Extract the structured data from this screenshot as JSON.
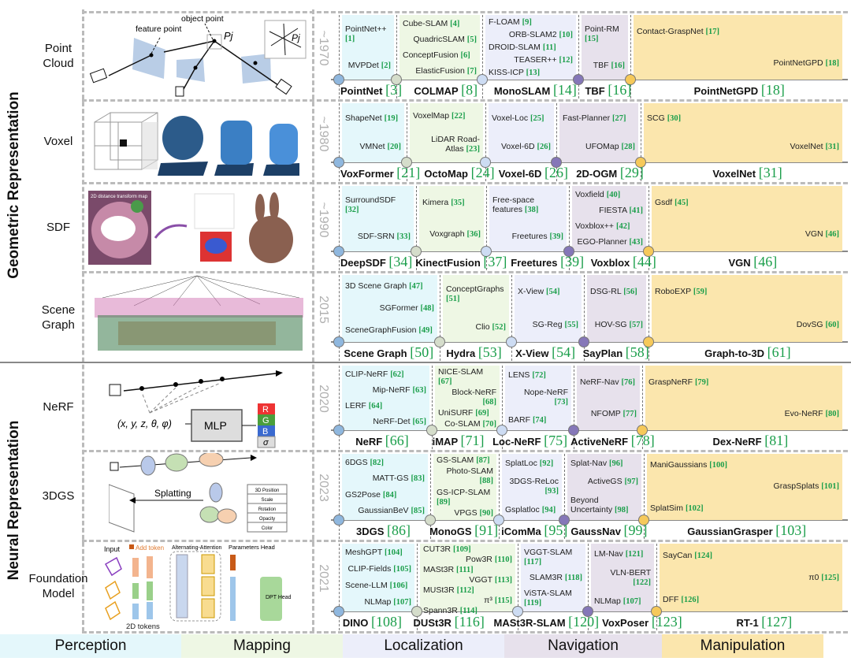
{
  "groups": [
    {
      "label": "Geometric Representation"
    },
    {
      "label": "Neural Representation"
    }
  ],
  "colors": {
    "perception": "#e4f7fb",
    "mapping": "#eef7e4",
    "localization": "#eceefa",
    "navigation": "#e7e1ec",
    "manipulation": "#fbe6ad",
    "ref_green": "#1a9e4a",
    "dots": [
      "#8fb7de",
      "#d5ddcb",
      "#cddcf3",
      "#8577b8",
      "#f6c95a"
    ]
  },
  "legend": [
    "Perception",
    "Mapping",
    "Localization",
    "Navigation",
    "Manipulation"
  ],
  "illustrations": {
    "point_cloud": {
      "feature_point": "feature point",
      "object_point": "object point",
      "pj": "Pj"
    },
    "sdf": {
      "title": "2D distance transform map"
    },
    "nerf": {
      "input": "(x, y, z, θ, φ)",
      "mlp": "MLP",
      "r": "R",
      "g": "G",
      "b": "B",
      "sigma": "σ"
    },
    "gs": {
      "splatting": "Splatting",
      "attrs": [
        "3D Position",
        "Scale",
        "Rotation",
        "Opacity",
        "Color"
      ]
    },
    "foundation": {
      "input": "Input",
      "add_token": "Add token",
      "attention": "Alternating-Attention",
      "params_head": "Parameters Head",
      "dpt_head": "DPT Head",
      "tokens": "2D tokens"
    }
  },
  "rows": [
    {
      "category": "Point Cloud",
      "year": "~1970",
      "columns": [
        {
          "items": [
            {
              "n": "PointNet++",
              "r": "[1]"
            },
            {
              "n": "MVPDet",
              "r": "[2]"
            }
          ],
          "main": {
            "n": "PointNet",
            "r": "[3]"
          }
        },
        {
          "items": [
            {
              "n": "Cube-SLAM",
              "r": "[4]"
            },
            {
              "n": "QuadricSLAM",
              "r": "[5]"
            },
            {
              "n": "ConceptFusion",
              "r": "[6]"
            },
            {
              "n": "ElasticFusion",
              "r": "[7]"
            }
          ],
          "main": {
            "n": "COLMAP",
            "r": "[8]"
          }
        },
        {
          "items": [
            {
              "n": "F-LOAM",
              "r": "[9]"
            },
            {
              "n": "ORB-SLAM2",
              "r": "[10]"
            },
            {
              "n": "DROID-SLAM",
              "r": "[11]"
            },
            {
              "n": "TEASER++",
              "r": "[12]"
            },
            {
              "n": "KISS-ICP",
              "r": "[13]"
            }
          ],
          "main": {
            "n": "MonoSLAM",
            "r": "[14]"
          }
        },
        {
          "items": [
            {
              "n": "Point-RM",
              "r": "[15]"
            },
            {
              "n": "TBF",
              "r": "[16]"
            }
          ],
          "main": {
            "n": "TBF",
            "r": "[16]"
          }
        },
        {
          "items": [
            {
              "n": "Contact-GraspNet",
              "r": "[17]"
            },
            {
              "n": "PointNetGPD",
              "r": "[18]"
            }
          ],
          "main": {
            "n": "PointNetGPD",
            "r": "[18]"
          }
        }
      ]
    },
    {
      "category": "Voxel",
      "year": "~1980",
      "columns": [
        {
          "items": [
            {
              "n": "ShapeNet",
              "r": "[19]"
            },
            {
              "n": "VMNet",
              "r": "[20]"
            }
          ],
          "main": {
            "n": "VoxFormer",
            "r": "[21]"
          }
        },
        {
          "items": [
            {
              "n": "VoxelMap",
              "r": "[22]"
            },
            {
              "n": "LiDAR Road-Atlas",
              "r": "[23]"
            }
          ],
          "main": {
            "n": "OctoMap",
            "r": "[24]"
          }
        },
        {
          "items": [
            {
              "n": "Voxel-Loc",
              "r": "[25]"
            },
            {
              "n": "Voxel-6D",
              "r": "[26]"
            }
          ],
          "main": {
            "n": "Voxel-6D",
            "r": "[26]"
          }
        },
        {
          "items": [
            {
              "n": "Fast-Planner",
              "r": "[27]"
            },
            {
              "n": "UFOMap",
              "r": "[28]"
            }
          ],
          "main": {
            "n": "2D-OGM",
            "r": "[29]"
          }
        },
        {
          "items": [
            {
              "n": "SCG",
              "r": "[30]"
            },
            {
              "n": "VoxelNet",
              "r": "[31]"
            }
          ],
          "main": {
            "n": "VoxelNet",
            "r": "[31]"
          }
        }
      ]
    },
    {
      "category": "SDF",
      "year": "~1990",
      "columns": [
        {
          "items": [
            {
              "n": "SurroundSDF",
              "r": "[32]"
            },
            {
              "n": "SDF-SRN",
              "r": "[33]"
            }
          ],
          "main": {
            "n": "DeepSDF",
            "r": "[34]"
          }
        },
        {
          "items": [
            {
              "n": "Kimera",
              "r": "[35]"
            },
            {
              "n": "Voxgraph",
              "r": "[36]"
            }
          ],
          "main": {
            "n": "KinectFusion",
            "r": "[37]"
          }
        },
        {
          "items": [
            {
              "n": "Free-space features",
              "r": "[38]"
            },
            {
              "n": "Freetures",
              "r": "[39]"
            }
          ],
          "main": {
            "n": "Freetures",
            "r": "[39]"
          }
        },
        {
          "items": [
            {
              "n": "Voxfield",
              "r": "[40]"
            },
            {
              "n": "FIESTA",
              "r": "[41]"
            },
            {
              "n": "Voxblox++",
              "r": "[42]"
            },
            {
              "n": "EGO-Planner",
              "r": "[43]"
            }
          ],
          "main": {
            "n": "Voxblox",
            "r": "[44]"
          }
        },
        {
          "items": [
            {
              "n": "Gsdf",
              "r": "[45]"
            },
            {
              "n": "VGN",
              "r": "[46]"
            }
          ],
          "main": {
            "n": "VGN",
            "r": "[46]"
          }
        }
      ]
    },
    {
      "category": "Scene Graph",
      "year": "2015",
      "columns": [
        {
          "items": [
            {
              "n": "3D Scene Graph",
              "r": "[47]"
            },
            {
              "n": "SGFormer",
              "r": "[48]"
            },
            {
              "n": "SceneGraphFusion",
              "r": "[49]"
            }
          ],
          "main": {
            "n": "Scene Graph",
            "r": "[50]"
          }
        },
        {
          "items": [
            {
              "n": "ConceptGraphs",
              "r": "[51]"
            },
            {
              "n": "Clio",
              "r": "[52]"
            }
          ],
          "main": {
            "n": "Hydra",
            "r": "[53]"
          }
        },
        {
          "items": [
            {
              "n": "X-View",
              "r": "[54]"
            },
            {
              "n": "SG-Reg",
              "r": "[55]"
            }
          ],
          "main": {
            "n": "X-View",
            "r": "[54]"
          }
        },
        {
          "items": [
            {
              "n": "DSG-RL",
              "r": "[56]"
            },
            {
              "n": "HOV-SG",
              "r": "[57]"
            }
          ],
          "main": {
            "n": "SayPlan",
            "r": "[58]"
          }
        },
        {
          "items": [
            {
              "n": "RoboEXP",
              "r": "[59]"
            },
            {
              "n": "DovSG",
              "r": "[60]"
            }
          ],
          "main": {
            "n": "Graph-to-3D",
            "r": "[61]"
          }
        }
      ]
    },
    {
      "category": "NeRF",
      "year": "2020",
      "columns": [
        {
          "items": [
            {
              "n": "CLIP-NeRF",
              "r": "[62]"
            },
            {
              "n": "Mip-NeRF",
              "r": "[63]"
            },
            {
              "n": "LERF",
              "r": "[64]"
            },
            {
              "n": "NeRF-Det",
              "r": "[65]"
            }
          ],
          "main": {
            "n": "NeRF",
            "r": "[66]"
          }
        },
        {
          "items": [
            {
              "n": "NICE-SLAM",
              "r": "[67]"
            },
            {
              "n": "Block-NeRF",
              "r": "[68]"
            },
            {
              "n": "UniSURF",
              "r": "[69]"
            },
            {
              "n": "Co-SLAM",
              "r": "[70]"
            }
          ],
          "main": {
            "n": "iMAP",
            "r": "[71]"
          }
        },
        {
          "items": [
            {
              "n": "LENS",
              "r": "[72]"
            },
            {
              "n": "Nope-NeRF",
              "r": "[73]"
            },
            {
              "n": "BARF",
              "r": "[74]"
            }
          ],
          "main": {
            "n": "Loc-NeRF",
            "r": "[75]"
          }
        },
        {
          "items": [
            {
              "n": "NeRF-Nav",
              "r": "[76]"
            },
            {
              "n": "NFOMP",
              "r": "[77]"
            }
          ],
          "main": {
            "n": "ActiveNeRF",
            "r": "[78]"
          }
        },
        {
          "items": [
            {
              "n": "GraspNeRF",
              "r": "[79]"
            },
            {
              "n": "Evo-NeRF",
              "r": "[80]"
            }
          ],
          "main": {
            "n": "Dex-NeRF",
            "r": "[81]"
          }
        }
      ]
    },
    {
      "category": "3DGS",
      "year": "2023",
      "columns": [
        {
          "items": [
            {
              "n": "6DGS",
              "r": "[82]"
            },
            {
              "n": "MATT-GS",
              "r": "[83]"
            },
            {
              "n": "GS2Pose",
              "r": "[84]"
            },
            {
              "n": "GaussianBeV",
              "r": "[85]"
            }
          ],
          "main": {
            "n": "3DGS",
            "r": "[86]"
          }
        },
        {
          "items": [
            {
              "n": "GS-SLAM",
              "r": "[87]"
            },
            {
              "n": "Photo-SLAM",
              "r": "[88]"
            },
            {
              "n": "GS-ICP-SLAM",
              "r": "[89]"
            },
            {
              "n": "VPGS",
              "r": "[90]"
            }
          ],
          "main": {
            "n": "MonoGS",
            "r": "[91]"
          }
        },
        {
          "items": [
            {
              "n": "SplatLoc",
              "r": "[92]"
            },
            {
              "n": "3DGS-ReLoc",
              "r": "[93]"
            },
            {
              "n": "Gsplatloc",
              "r": "[94]"
            }
          ],
          "main": {
            "n": "iComMa",
            "r": "[95]"
          }
        },
        {
          "items": [
            {
              "n": "Splat-Nav",
              "r": "[96]"
            },
            {
              "n": "ActiveGS",
              "r": "[97]"
            },
            {
              "n": "Beyond Uncertainty",
              "r": "[98]"
            }
          ],
          "main": {
            "n": "GaussNav",
            "r": "[99]"
          }
        },
        {
          "items": [
            {
              "n": "ManiGaussians",
              "r": "[100]"
            },
            {
              "n": "GraspSplats",
              "r": "[101]"
            },
            {
              "n": "SplatSim",
              "r": "[102]"
            }
          ],
          "main": {
            "n": "GaussianGrasper",
            "r": "[103]"
          }
        }
      ]
    },
    {
      "category": "Foundation Model",
      "year": "2021",
      "columns": [
        {
          "items": [
            {
              "n": "MeshGPT",
              "r": "[104]"
            },
            {
              "n": "CLIP-Fields",
              "r": "[105]"
            },
            {
              "n": "Scene-LLM",
              "r": "[106]"
            },
            {
              "n": "NLMap",
              "r": "[107]"
            }
          ],
          "main": {
            "n": "DINO",
            "r": "[108]"
          }
        },
        {
          "items": [
            {
              "n": "CUT3R",
              "r": "[109]"
            },
            {
              "n": "Pow3R",
              "r": "[110]"
            },
            {
              "n": "MASt3R",
              "r": "[111]"
            },
            {
              "n": "VGGT",
              "r": "[113]"
            },
            {
              "n": "MUSt3R",
              "r": "[112]"
            },
            {
              "n": "π³",
              "r": "[115]"
            },
            {
              "n": "Spann3R",
              "r": "[114]"
            }
          ],
          "main": {
            "n": "DUSt3R",
            "r": "[116]"
          }
        },
        {
          "items": [
            {
              "n": "VGGT-SLAM",
              "r": "[117]"
            },
            {
              "n": "SLAM3R",
              "r": "[118]"
            },
            {
              "n": "ViSTA-SLAM",
              "r": "[119]"
            }
          ],
          "main": {
            "n": "MASt3R-SLAM",
            "r": "[120]"
          }
        },
        {
          "items": [
            {
              "n": "LM-Nav",
              "r": "[121]"
            },
            {
              "n": "VLN-BERT",
              "r": "[122]"
            },
            {
              "n": "NLMap",
              "r": "[107]"
            }
          ],
          "main": {
            "n": "VoxPoser",
            "r": "[123]"
          }
        },
        {
          "items": [
            {
              "n": "SayCan",
              "r": "[124]"
            },
            {
              "n": "π0",
              "r": "[125]"
            },
            {
              "n": "DFF",
              "r": "[126]"
            }
          ],
          "main": {
            "n": "RT-1",
            "r": "[127]"
          }
        }
      ]
    }
  ]
}
